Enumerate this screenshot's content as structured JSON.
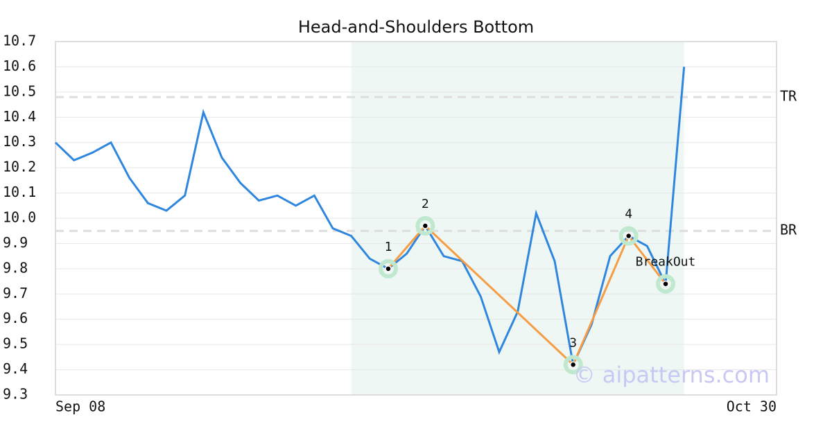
{
  "chart_data": {
    "type": "line",
    "title": "Head-and-Shoulders Bottom",
    "categories": [
      "Sep 08",
      null,
      null,
      null,
      null,
      null,
      null,
      null,
      null,
      null,
      null,
      null,
      null,
      null,
      null,
      null,
      null,
      null,
      null,
      null,
      null,
      null,
      null,
      null,
      null,
      null,
      null,
      null,
      null,
      null,
      null,
      null,
      null,
      null,
      null,
      null,
      null,
      null,
      null,
      "Oct 30"
    ],
    "values": [
      10.3,
      10.23,
      10.26,
      10.3,
      10.16,
      10.06,
      10.03,
      10.09,
      10.42,
      10.24,
      10.14,
      10.07,
      10.09,
      10.05,
      10.09,
      9.96,
      9.93,
      9.84,
      9.8,
      9.86,
      9.97,
      9.85,
      9.83,
      9.69,
      9.47,
      9.63,
      10.02,
      9.83,
      9.42,
      9.58,
      9.85,
      9.93,
      9.89,
      9.74,
      10.6,
      null,
      null,
      null,
      null,
      null
    ],
    "color": "#2e86de",
    "ylim": [
      9.3,
      10.7
    ],
    "yticks": [
      9.3,
      9.4,
      9.5,
      9.6,
      9.7,
      9.8,
      9.9,
      {
        "value": 10.0,
        "label": "10.0"
      },
      10.1,
      10.2,
      10.3,
      10.4,
      10.5,
      10.6,
      10.7
    ],
    "grid": true,
    "pattern": {
      "x": [
        18,
        20,
        28,
        31,
        33
      ],
      "values": [
        9.8,
        9.97,
        9.42,
        9.93,
        9.74
      ],
      "labels": [
        "1",
        "2",
        "3",
        "4",
        "BreakOut"
      ],
      "color": "#f59c45"
    },
    "hlines": [
      {
        "label": "TR",
        "value": 10.48
      },
      {
        "label": "BR",
        "value": 9.95
      }
    ],
    "highlight": {
      "from": 16,
      "to": 34
    },
    "watermark": "© aipatterns.com"
  }
}
